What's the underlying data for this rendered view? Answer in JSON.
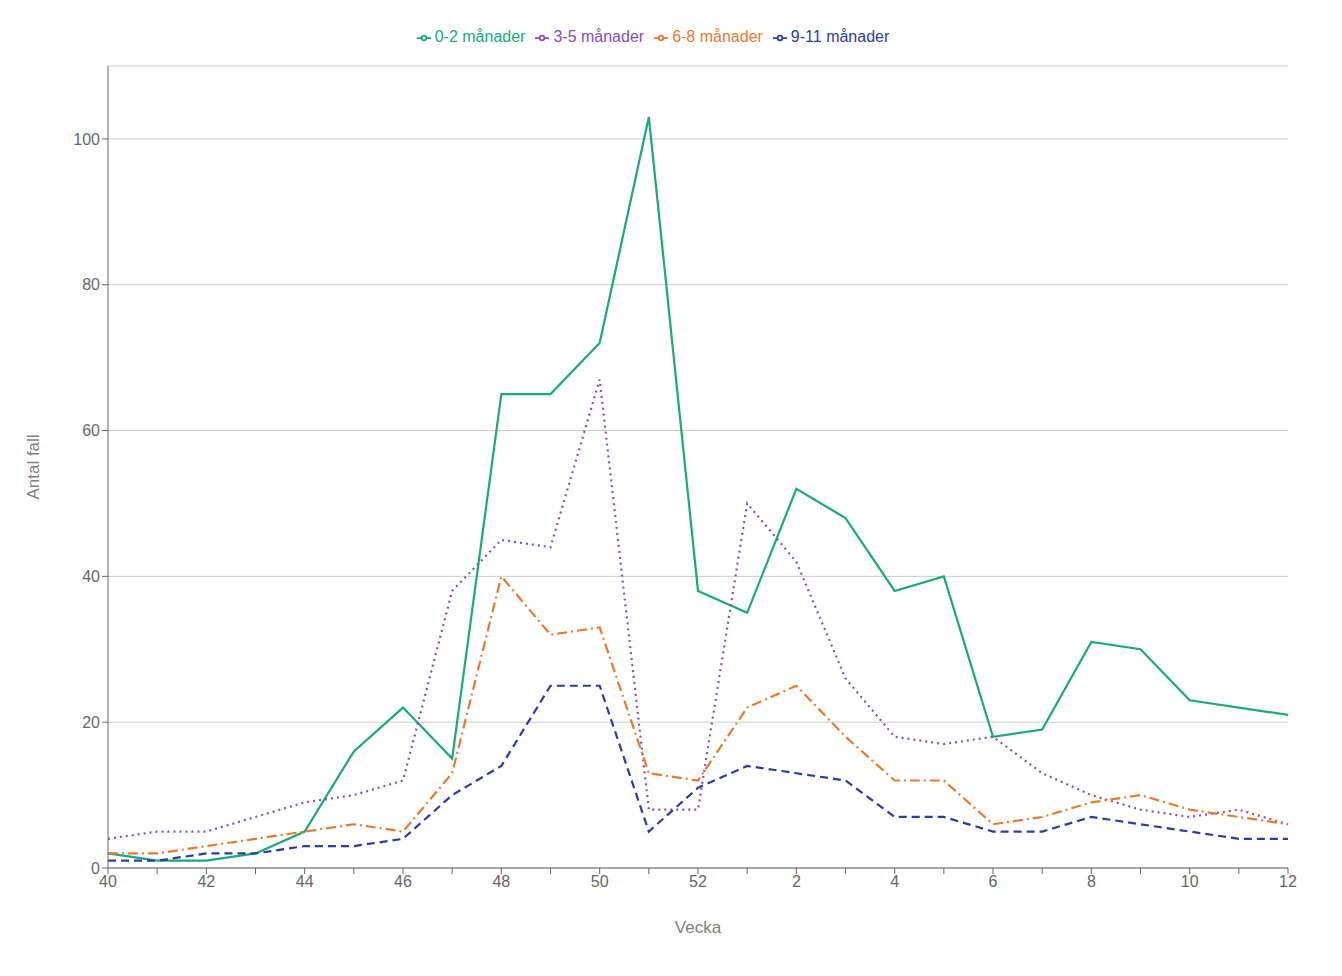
{
  "chart_data": {
    "type": "line",
    "xlabel": "Vecka",
    "ylabel": "Antal fall",
    "categories": [
      "40",
      null,
      "42",
      null,
      "44",
      null,
      "46",
      null,
      "48",
      null,
      "50",
      null,
      "52",
      null,
      "2",
      null,
      "4",
      null,
      "6",
      null,
      "8",
      null,
      "10",
      null,
      "12"
    ],
    "series": [
      {
        "name": "0-2 månader",
        "color": "#1aaa7a",
        "line_style": "solid",
        "values": [
          2,
          1,
          1,
          2,
          5,
          16,
          22,
          15,
          65,
          65,
          72,
          103,
          38,
          35,
          52,
          48,
          38,
          40,
          18,
          19,
          31,
          30,
          23,
          22,
          21
        ]
      },
      {
        "name": "3-5 månader",
        "color": "#8b4db8",
        "line_style": "dotted",
        "values": [
          4,
          5,
          5,
          7,
          9,
          10,
          12,
          38,
          45,
          44,
          67,
          8,
          8,
          50,
          42,
          26,
          18,
          17,
          18,
          13,
          10,
          8,
          7,
          8,
          6
        ]
      },
      {
        "name": "6-8 månader",
        "color": "#e87a2e",
        "line_style": "dashdot",
        "values": [
          2,
          2,
          3,
          4,
          5,
          6,
          5,
          13,
          40,
          32,
          33,
          13,
          12,
          22,
          25,
          18,
          12,
          12,
          6,
          7,
          9,
          10,
          8,
          7,
          6
        ]
      },
      {
        "name": "9-11 månader",
        "color": "#2b3d9e",
        "line_style": "dashed",
        "values": [
          1,
          1,
          2,
          2,
          3,
          3,
          4,
          10,
          14,
          25,
          25,
          5,
          11,
          14,
          13,
          12,
          7,
          7,
          5,
          5,
          7,
          6,
          5,
          4,
          4
        ]
      }
    ],
    "ylim": [
      0,
      110
    ],
    "yticks": [
      0,
      20,
      40,
      60,
      80,
      100
    ],
    "grid": true,
    "legend": "top"
  }
}
